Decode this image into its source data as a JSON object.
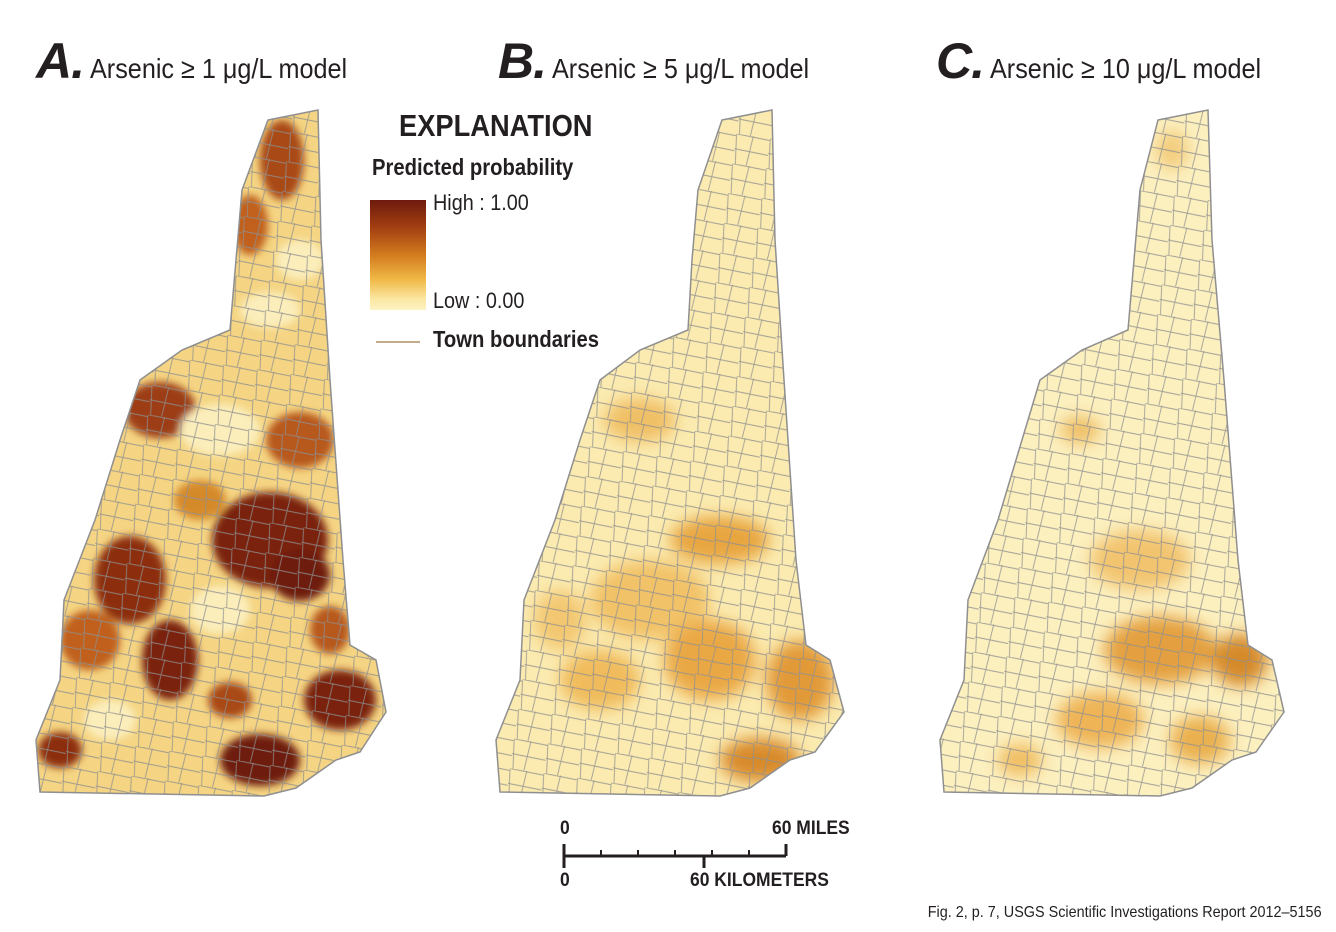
{
  "panels": [
    {
      "letter": "A.",
      "title": "Arsenic ≥ 1 μg/L model"
    },
    {
      "letter": "B.",
      "title": "Arsenic ≥ 5 μg/L model"
    },
    {
      "letter": "C.",
      "title": "Arsenic ≥ 10 μg/L model"
    }
  ],
  "legend": {
    "heading": "EXPLANATION",
    "subheading": "Predicted probability",
    "high_label": "High : 1.00",
    "low_label": "Low : 0.00",
    "boundary_label": "Town boundaries"
  },
  "scale_bar": {
    "miles_zero": "0",
    "miles_label": "60 MILES",
    "km_zero": "0",
    "km_label": "60 KILOMETERS"
  },
  "credit": "Fig. 2, p. 7, USGS Scientific Investigations Report 2012–5156",
  "colors": {
    "high": "#6e1a0d",
    "mid": "#d27b1e",
    "low": "#fdf3c4",
    "boundary": "#8f8f8f",
    "legend_boundary": "#c2ab8a"
  }
}
